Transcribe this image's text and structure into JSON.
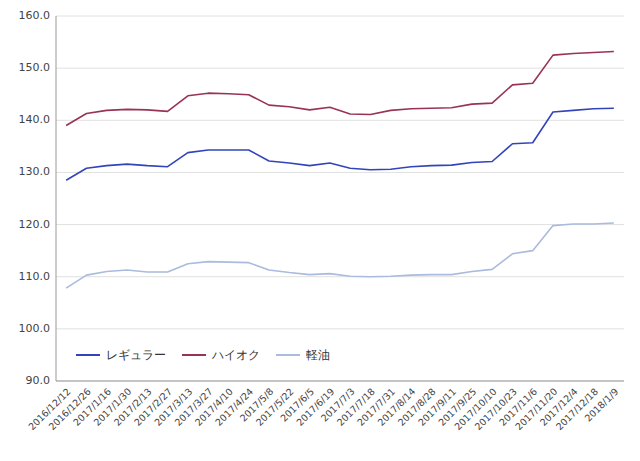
{
  "chart_data": {
    "type": "line",
    "categories": [
      "2016/12/12",
      "2016/12/26",
      "2017/1/16",
      "2017/1/30",
      "2017/2/13",
      "2017/2/27",
      "2017/3/13",
      "2017/3/27",
      "2017/4/10",
      "2017/4/24",
      "2017/5/8",
      "2017/5/22",
      "2017/6/5",
      "2017/6/19",
      "2017/7/3",
      "2017/7/18",
      "2017/7/31",
      "2017/8/14",
      "2017/8/28",
      "2017/9/11",
      "2017/9/25",
      "2017/10/10",
      "2017/10/23",
      "2017/11/6",
      "2017/11/20",
      "2017/12/4",
      "2017/12/18",
      "2018/1/9"
    ],
    "series": [
      {
        "name": "レギュラー",
        "color": "#3344bb",
        "values": [
          128.5,
          130.8,
          131.3,
          131.6,
          131.3,
          131.1,
          133.8,
          134.3,
          134.3,
          134.3,
          132.2,
          131.8,
          131.3,
          131.8,
          130.8,
          130.5,
          130.6,
          131.1,
          131.3,
          131.4,
          131.9,
          132.1,
          135.5,
          135.7,
          141.6,
          141.9,
          142.2,
          142.3
        ]
      },
      {
        "name": "ハイオク",
        "color": "#993355",
        "values": [
          139.0,
          141.3,
          141.9,
          142.1,
          142.0,
          141.7,
          144.7,
          145.2,
          145.1,
          144.9,
          142.9,
          142.6,
          142.0,
          142.5,
          141.2,
          141.1,
          141.9,
          142.2,
          142.3,
          142.4,
          143.1,
          143.3,
          146.8,
          147.1,
          152.5,
          152.8,
          153.0,
          153.2
        ]
      },
      {
        "name": "軽油",
        "color": "#aabbdd",
        "values": [
          107.8,
          110.3,
          111.0,
          111.3,
          110.9,
          110.9,
          112.5,
          112.9,
          112.8,
          112.7,
          111.3,
          110.8,
          110.4,
          110.6,
          110.1,
          110.0,
          110.1,
          110.3,
          110.4,
          110.4,
          111.0,
          111.4,
          114.4,
          115.0,
          119.8,
          120.1,
          120.1,
          120.3
        ]
      }
    ],
    "ylim": [
      90.0,
      160.0
    ],
    "yticks": [
      {
        "value": 90.0,
        "label": "90.0"
      },
      {
        "value": 100.0,
        "label": "100.0"
      },
      {
        "value": 110.0,
        "label": "110.0"
      },
      {
        "value": 120.0,
        "label": "120.0"
      },
      {
        "value": 130.0,
        "label": "130.0"
      },
      {
        "value": 140.0,
        "label": "140.0"
      },
      {
        "value": 150.0,
        "label": "150.0"
      },
      {
        "value": 160.0,
        "label": "160.0"
      }
    ],
    "grid": true,
    "legend": "lower-left"
  }
}
